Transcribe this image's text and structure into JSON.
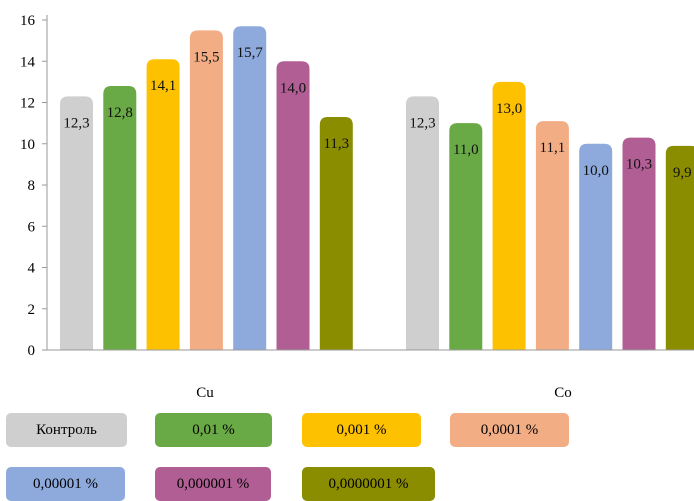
{
  "chart_data": {
    "type": "bar",
    "categories": [
      "Cu",
      "Co"
    ],
    "ylim": [
      0,
      16
    ],
    "yticks": [
      "0",
      "2",
      "4",
      "6",
      "8",
      "10",
      "12",
      "14",
      "16"
    ],
    "grid": false,
    "legend_position": "bottom",
    "series": [
      {
        "name": "Контроль",
        "color": "#d0cfcf",
        "values": [
          12.3,
          12.3
        ],
        "labels": [
          "12,3",
          "12,3"
        ]
      },
      {
        "name": "0,01 %",
        "color": "#6aaa46",
        "values": [
          12.8,
          11.0
        ],
        "labels": [
          "12,8",
          "11,0"
        ]
      },
      {
        "name": "0,001 %",
        "color": "#fdc100",
        "values": [
          14.1,
          13.0
        ],
        "labels": [
          "14,1",
          "13,0"
        ]
      },
      {
        "name": "0,0001 %",
        "color": "#f3ad84",
        "values": [
          15.5,
          11.1
        ],
        "labels": [
          "15,5",
          "11,1"
        ]
      },
      {
        "name": "0,00001 %",
        "color": "#8eaadc",
        "values": [
          15.7,
          10.0
        ],
        "labels": [
          "15,7",
          "10,0"
        ]
      },
      {
        "name": "0,000001 %",
        "color": "#b05e94",
        "values": [
          14.0,
          10.3
        ],
        "labels": [
          "14,0",
          "10,3"
        ]
      },
      {
        "name": "0,0000001 %",
        "color": "#8b8d00",
        "values": [
          11.3,
          9.9
        ],
        "labels": [
          "11,3",
          "9,9"
        ]
      }
    ]
  }
}
